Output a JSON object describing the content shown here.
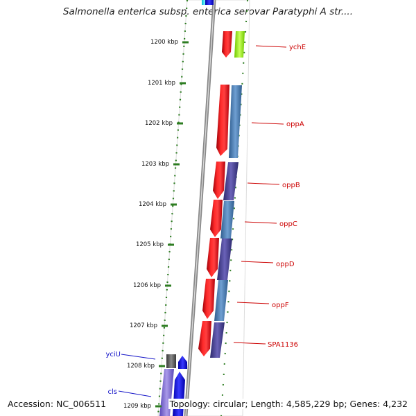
{
  "title": "Salmonella enterica subsp. enterica serovar Paratyphi A str....",
  "accession": "Accession: NC_006511",
  "summary": "Topology: circular; Length: 4,585,229 bp; Genes: 4,232",
  "colors": {
    "backbone": "#8a8a8a",
    "tick": "#2e7d22",
    "forward_gene": "#e8101a",
    "reverse_gene_label": "#cc0000",
    "blue_gene_label": "#1414c8"
  },
  "ticks": [
    {
      "label": "1200 kbp"
    },
    {
      "label": "1201 kbp"
    },
    {
      "label": "1202 kbp"
    },
    {
      "label": "1203 kbp"
    },
    {
      "label": "1204 kbp"
    },
    {
      "label": "1205 kbp"
    },
    {
      "label": "1206 kbp"
    },
    {
      "label": "1207 kbp"
    },
    {
      "label": "1208 kbp"
    },
    {
      "label": "1209 kbp"
    }
  ],
  "genes": [
    {
      "name": "ychE"
    },
    {
      "name": "oppA"
    },
    {
      "name": "oppB"
    },
    {
      "name": "oppC"
    },
    {
      "name": "oppD"
    },
    {
      "name": "oppF"
    },
    {
      "name": "SPA1136"
    },
    {
      "name": "yciU"
    },
    {
      "name": "cls"
    }
  ]
}
